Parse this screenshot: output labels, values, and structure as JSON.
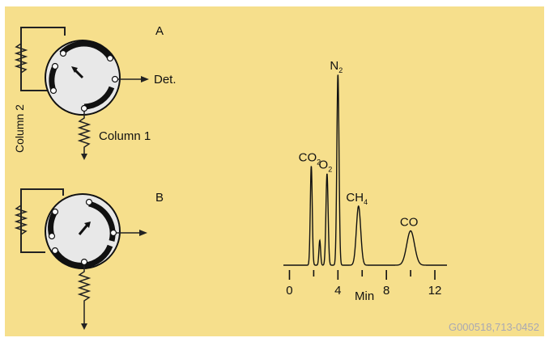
{
  "diagram": {
    "panel_a_label": "A",
    "panel_b_label": "B",
    "column1_label": "Column 1",
    "column2_label": "Column 2",
    "detector_label": "Det."
  },
  "chart_data": {
    "type": "line",
    "xlabel": "Min",
    "xticks": [
      0,
      4,
      8,
      12
    ],
    "xlim": [
      -0.5,
      13
    ],
    "peaks": [
      {
        "label": "CO",
        "sub": "2",
        "x": 1.8,
        "height": 0.52,
        "width": 0.08
      },
      {
        "label": "",
        "sub": "",
        "x": 2.5,
        "height": 0.13,
        "width": 0.07
      },
      {
        "label": "O",
        "sub": "2",
        "x": 3.1,
        "height": 0.48,
        "width": 0.09
      },
      {
        "label": "N",
        "sub": "2",
        "x": 4.0,
        "height": 1.0,
        "width": 0.09
      },
      {
        "label": "CH",
        "sub": "4",
        "x": 5.7,
        "height": 0.31,
        "width": 0.18
      },
      {
        "label": "CO",
        "sub": "",
        "x": 10.0,
        "height": 0.18,
        "width": 0.32
      }
    ]
  },
  "footer": {
    "code": "G000518,713-0452"
  }
}
